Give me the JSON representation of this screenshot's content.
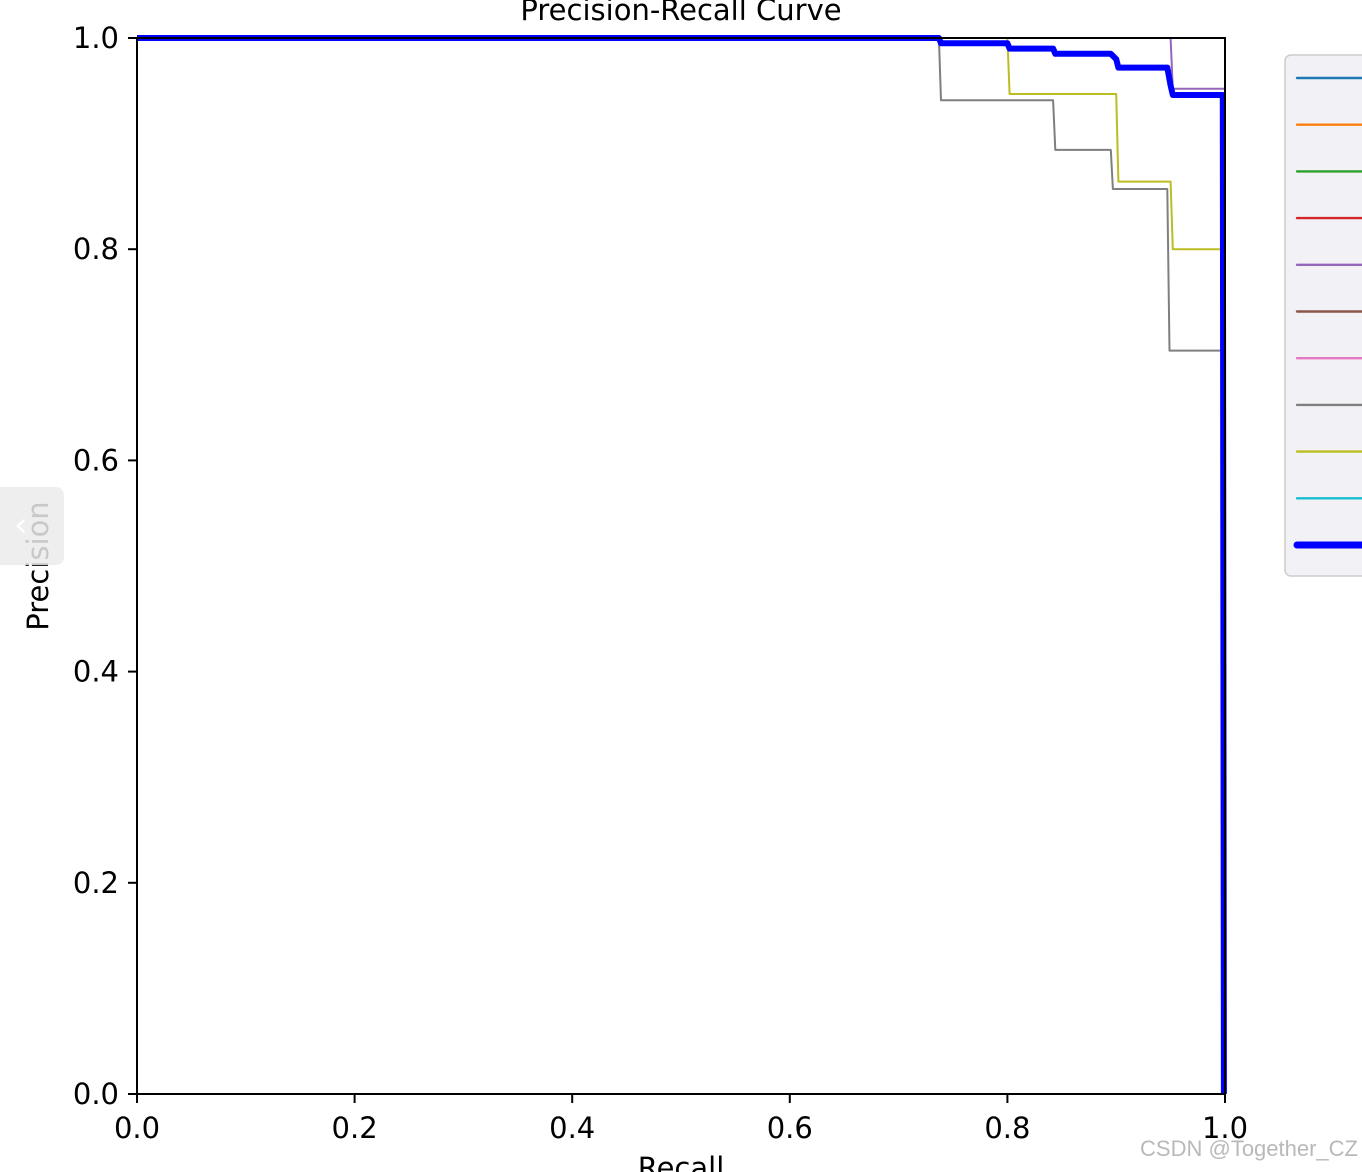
{
  "watermark": "CSDN @Together_CZ",
  "side_tab_icon": "chevron-left-icon",
  "chart_data": {
    "type": "line",
    "title": "Precision-Recall Curve",
    "xlabel": "Recall",
    "ylabel": "Precision",
    "xlim": [
      0.0,
      1.0
    ],
    "ylim": [
      0.0,
      1.0
    ],
    "xticks": [
      "0.0",
      "0.2",
      "0.4",
      "0.6",
      "0.8",
      "1.0"
    ],
    "yticks": [
      "0.0",
      "0.2",
      "0.4",
      "0.6",
      "0.8",
      "1.0"
    ],
    "grid": false,
    "legend_position": "upper right (outside plot, cropped)",
    "series": [
      {
        "color": "#1f77b4",
        "width": 2,
        "x": [
          0,
          1,
          1
        ],
        "y": [
          1,
          1,
          0
        ]
      },
      {
        "color": "#ff7f0e",
        "width": 2,
        "x": [
          0,
          1,
          1
        ],
        "y": [
          1,
          1,
          0
        ]
      },
      {
        "color": "#2ca02c",
        "width": 2,
        "x": [
          0,
          1,
          1
        ],
        "y": [
          1,
          1,
          0
        ]
      },
      {
        "color": "#d62728",
        "width": 2,
        "x": [
          0,
          1,
          1
        ],
        "y": [
          1,
          1,
          0
        ]
      },
      {
        "color": "#9467bd",
        "width": 2,
        "x": [
          0,
          0.95,
          0.952,
          1,
          1
        ],
        "y": [
          1,
          1,
          0.952,
          0.952,
          0
        ]
      },
      {
        "color": "#8c564b",
        "width": 2,
        "x": [
          0,
          1,
          1
        ],
        "y": [
          1,
          1,
          0
        ]
      },
      {
        "color": "#e377c2",
        "width": 2,
        "x": [
          0,
          1,
          1
        ],
        "y": [
          1,
          1,
          0
        ]
      },
      {
        "color": "#7f7f7f",
        "width": 2,
        "x": [
          0,
          0.737,
          0.739,
          0.842,
          0.844,
          0.895,
          0.897,
          0.947,
          0.949,
          0.998,
          0.999
        ],
        "y": [
          1,
          1,
          0.941,
          0.941,
          0.894,
          0.894,
          0.857,
          0.857,
          0.704,
          0.704,
          0
        ]
      },
      {
        "color": "#bcbd22",
        "width": 2,
        "x": [
          0,
          0.8,
          0.802,
          0.9,
          0.902,
          0.95,
          0.952,
          0.998,
          0.999
        ],
        "y": [
          1,
          1,
          0.947,
          0.947,
          0.864,
          0.864,
          0.8,
          0.8,
          0
        ]
      },
      {
        "color": "#17becf",
        "width": 2,
        "x": [
          0,
          1,
          1
        ],
        "y": [
          1,
          1,
          0
        ]
      },
      {
        "color": "#0000ff",
        "width": 6,
        "x": [
          0,
          0.737,
          0.739,
          0.8,
          0.802,
          0.842,
          0.844,
          0.895,
          0.9,
          0.902,
          0.947,
          0.95,
          0.952,
          0.998,
          0.999
        ],
        "y": [
          1,
          1,
          0.995,
          0.995,
          0.99,
          0.99,
          0.985,
          0.985,
          0.98,
          0.972,
          0.972,
          0.955,
          0.946,
          0.946,
          0
        ]
      }
    ]
  }
}
